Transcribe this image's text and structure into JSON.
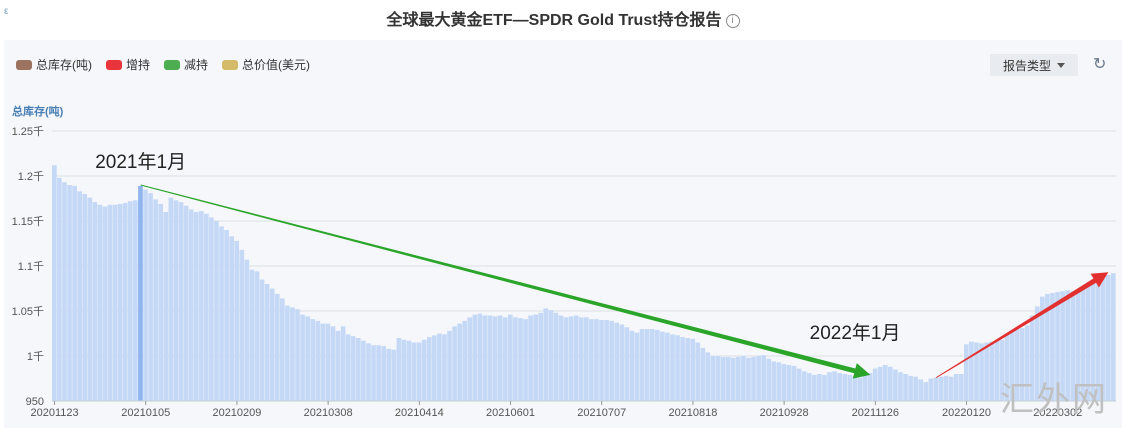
{
  "header": {
    "corner_mark": "ε",
    "title": "全球最大黄金ETF—SPDR Gold Trust持仓报告",
    "info_icon": "info-icon"
  },
  "legend": [
    {
      "label": "总库存(吨)",
      "color": "#9c7260"
    },
    {
      "label": "增持",
      "color": "#e8343a"
    },
    {
      "label": "减持",
      "color": "#4cae50"
    },
    {
      "label": "总价值(美元)",
      "color": "#d3bb6a"
    }
  ],
  "toolbar": {
    "report_type_label": "报告类型",
    "refresh_icon": "refresh-icon"
  },
  "watermark": "汇外网",
  "chart_data": {
    "type": "bar",
    "ylabel": "总库存(吨)",
    "ylim": [
      950,
      1250
    ],
    "yticks": [
      "950",
      "1千",
      "1.05千",
      "1.1千",
      "1.15千",
      "1.2千",
      "1.25千"
    ],
    "ytick_values": [
      950,
      1000,
      1050,
      1100,
      1150,
      1200,
      1250
    ],
    "xtick_labels": [
      "20201123",
      "20210105",
      "20210209",
      "20210308",
      "20210414",
      "20210601",
      "20210707",
      "20210818",
      "20210928",
      "20211126",
      "20220120",
      "20220302"
    ],
    "xtick_indices": [
      0,
      18,
      36,
      54,
      72,
      90,
      108,
      126,
      144,
      162,
      180,
      198
    ],
    "grid": true,
    "bar_color": "#c5d9f7",
    "highlight_color": "#8fb4ef",
    "highlight_index": 17,
    "values": [
      1212,
      1198,
      1193,
      1190,
      1189,
      1183,
      1180,
      1176,
      1171,
      1168,
      1166,
      1168,
      1168,
      1169,
      1170,
      1172,
      1173,
      1189,
      1185,
      1181,
      1174,
      1169,
      1160,
      1176,
      1173,
      1171,
      1167,
      1163,
      1160,
      1161,
      1158,
      1154,
      1150,
      1144,
      1140,
      1133,
      1128,
      1118,
      1107,
      1096,
      1094,
      1085,
      1080,
      1075,
      1069,
      1064,
      1056,
      1054,
      1052,
      1046,
      1044,
      1041,
      1039,
      1036,
      1036,
      1033,
      1028,
      1033,
      1024,
      1022,
      1020,
      1017,
      1014,
      1012,
      1012,
      1011,
      1008,
      1007,
      1020,
      1018,
      1017,
      1015,
      1015,
      1018,
      1021,
      1023,
      1025,
      1024,
      1028,
      1033,
      1036,
      1039,
      1043,
      1046,
      1047,
      1045,
      1045,
      1044,
      1045,
      1043,
      1046,
      1043,
      1042,
      1041,
      1045,
      1046,
      1048,
      1053,
      1051,
      1048,
      1045,
      1043,
      1044,
      1045,
      1043,
      1043,
      1041,
      1041,
      1040,
      1040,
      1039,
      1037,
      1035,
      1032,
      1028,
      1026,
      1030,
      1030,
      1030,
      1029,
      1027,
      1026,
      1024,
      1023,
      1021,
      1020,
      1019,
      1015,
      1009,
      1004,
      1000,
      1000,
      999,
      999,
      998,
      999,
      1000,
      998,
      999,
      1000,
      1001,
      997,
      994,
      993,
      991,
      990,
      989,
      986,
      983,
      981,
      979,
      980,
      979,
      982,
      983,
      981,
      980,
      979,
      978,
      976,
      979,
      981,
      986,
      988,
      990,
      988,
      985,
      982,
      980,
      978,
      977,
      974,
      971,
      975,
      976,
      977,
      978,
      977,
      980,
      980,
      1013,
      1016,
      1015,
      1014,
      1015,
      1016,
      1017,
      1018,
      1025,
      1028,
      1030,
      1031,
      1034,
      1045,
      1055,
      1066,
      1069,
      1070,
      1071,
      1072,
      1073,
      1072,
      1074,
      1077,
      1080,
      1083,
      1085,
      1088,
      1090,
      1092
    ],
    "annotations": [
      {
        "text": "2021年1月",
        "index": 17,
        "value": 1209
      },
      {
        "text": "2022年1月",
        "index": 158,
        "value": 1019
      }
    ],
    "arrows": [
      {
        "color": "#2aa52a",
        "from": {
          "index": 17,
          "value": 1190
        },
        "to": {
          "index": 161,
          "value": 979
        }
      },
      {
        "color": "#e23030",
        "from": {
          "index": 174,
          "value": 976
        },
        "to": {
          "index": 208,
          "value": 1093
        }
      }
    ]
  }
}
